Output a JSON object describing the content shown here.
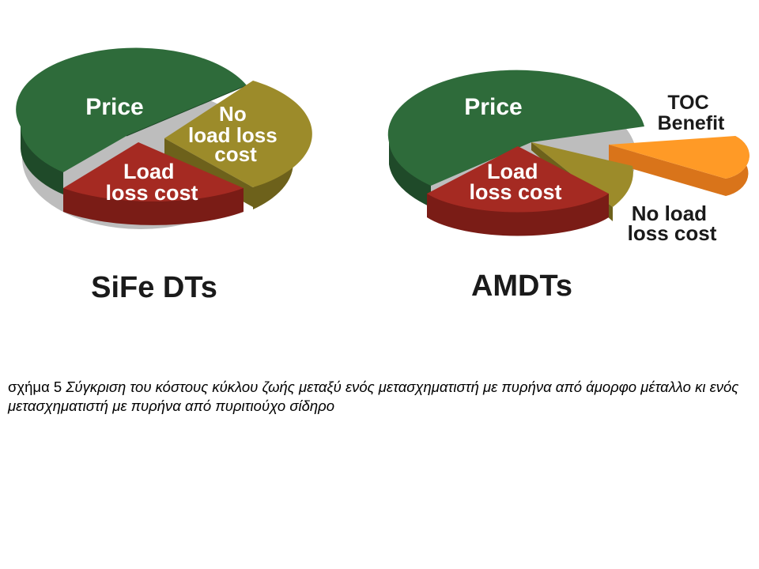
{
  "chart_data": [
    {
      "type": "pie",
      "title": "SiFe DTs",
      "slices": [
        {
          "label": "Price",
          "value": 50,
          "color": "#2e6b3a",
          "exploded": false
        },
        {
          "label": "No load loss cost",
          "value": 20,
          "color": "#9c8b2a",
          "exploded": true
        },
        {
          "label": "Load loss cost",
          "value": 30,
          "color": "#a52a22",
          "exploded": true
        }
      ]
    },
    {
      "type": "pie",
      "title": "AMDTs",
      "slices": [
        {
          "label": "Price",
          "value": 57,
          "color": "#2e6b3a",
          "exploded": false
        },
        {
          "label": "TOC Benefit",
          "value": 7,
          "color": "#ff9a26",
          "exploded": true
        },
        {
          "label": "No load loss cost",
          "value": 6,
          "color": "#9c8b2a",
          "exploded": true
        },
        {
          "label": "Load loss cost",
          "value": 30,
          "color": "#a52a22",
          "exploded": true
        }
      ]
    }
  ],
  "charts": {
    "sife": {
      "price": "Price",
      "noload": [
        "No",
        "load loss",
        "cost"
      ],
      "load": [
        "Load",
        "loss cost"
      ],
      "title": "SiFe DTs"
    },
    "amdt": {
      "price": "Price",
      "toc": [
        "TOC",
        "Benefit"
      ],
      "load": [
        "Load",
        "loss cost"
      ],
      "noload": [
        "No load",
        "loss cost"
      ],
      "title": "AMDTs"
    }
  },
  "caption": {
    "label": "σχήμα 5",
    "text": "Σύγκριση του κόστους κύκλου ζωής μεταξύ ενός μετασχηματιστή με πυρήνα από άμορφο μέταλλο κι ενός μετασχηματιστή με πυρήνα από πυριτιούχο σίδηρο"
  }
}
